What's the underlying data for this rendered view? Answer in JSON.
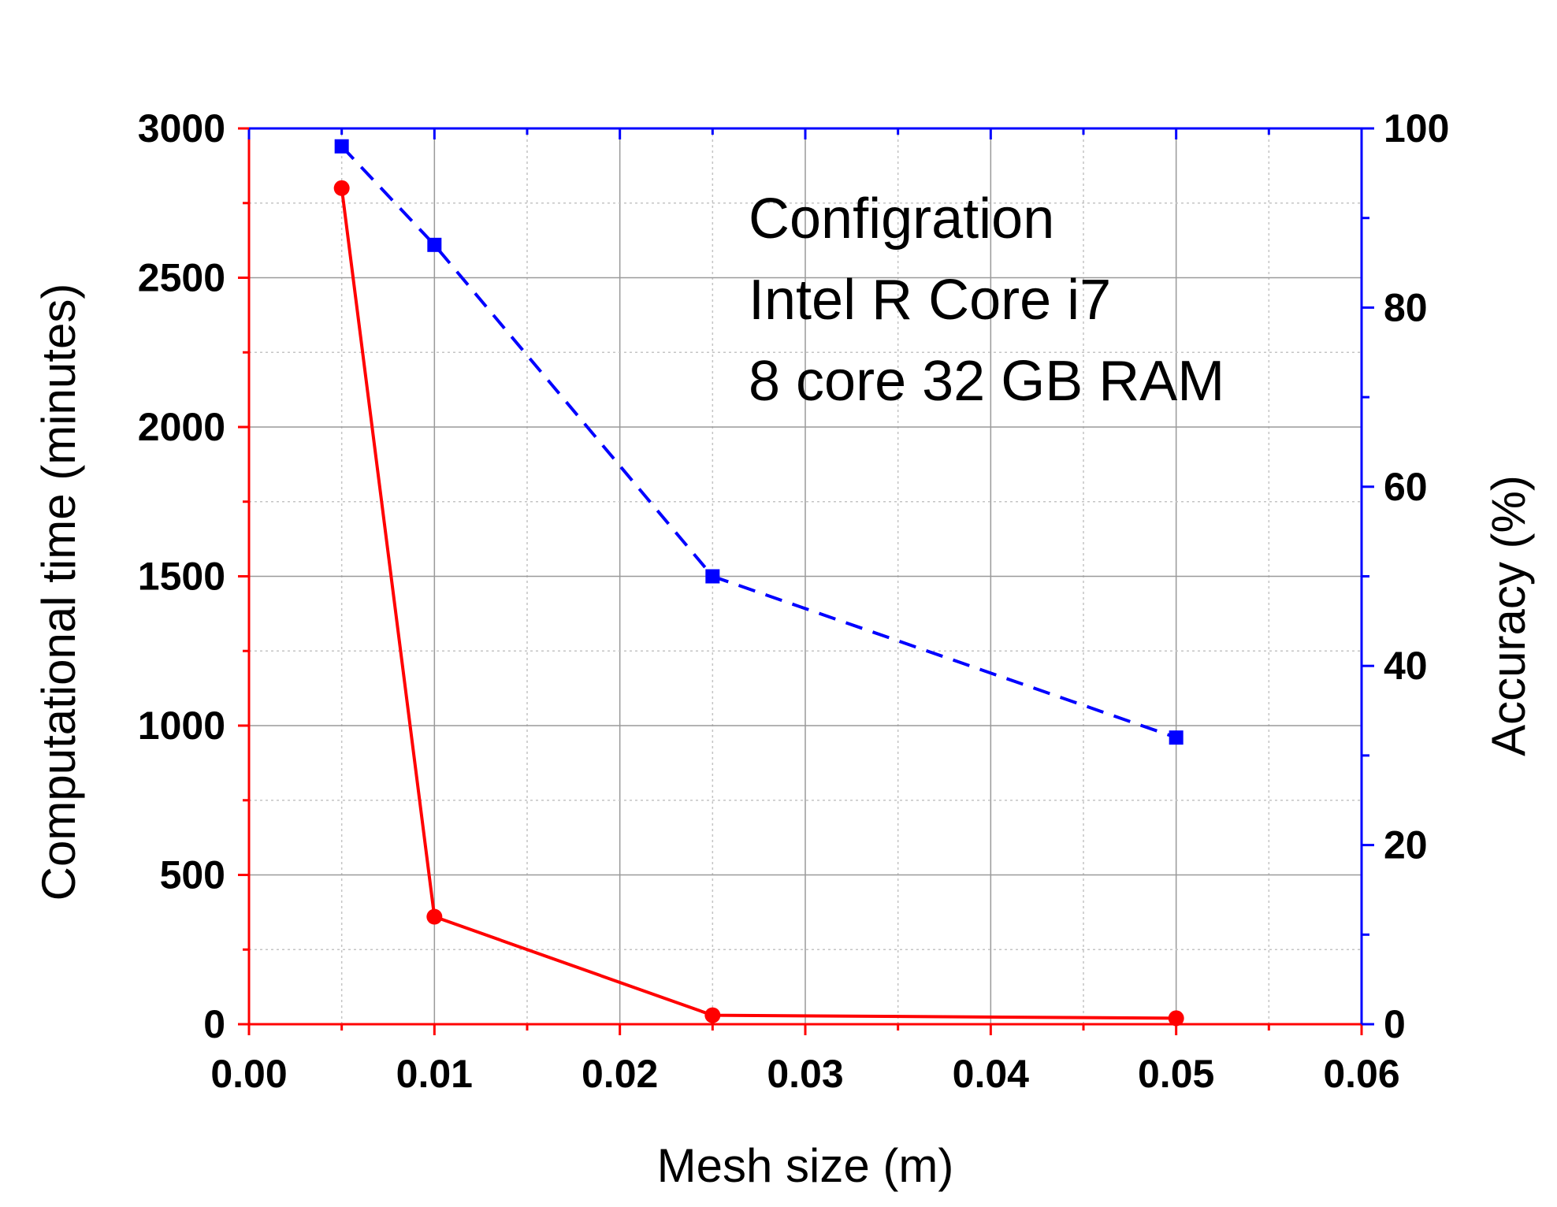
{
  "chart_data": {
    "type": "line",
    "xlabel": "Mesh size (m)",
    "ylabel_left": "Computational time (minutes)",
    "ylabel_right": "Accuracy (%)",
    "xlim": [
      0,
      0.06
    ],
    "ylim_left": [
      0,
      3000
    ],
    "ylim_right": [
      0,
      100
    ],
    "x_ticks": [
      "0.00",
      "0.01",
      "0.02",
      "0.03",
      "0.04",
      "0.05",
      "0.06"
    ],
    "y_left_ticks": [
      "0",
      "500",
      "1000",
      "1500",
      "2000",
      "2500",
      "3000"
    ],
    "y_right_ticks": [
      "0",
      "20",
      "40",
      "60",
      "80",
      "100"
    ],
    "grid": true,
    "series": [
      {
        "axis": "left",
        "color": "#ff0000",
        "line_style": "solid",
        "marker": "circle",
        "x": [
          0.005,
          0.01,
          0.025,
          0.05
        ],
        "y": [
          2800,
          360,
          30,
          20
        ]
      },
      {
        "axis": "right",
        "color": "#0000ff",
        "line_style": "dashed",
        "marker": "square",
        "x": [
          0.005,
          0.01,
          0.025,
          0.05
        ],
        "y": [
          98,
          87,
          50,
          32
        ]
      }
    ],
    "annotation_lines": [
      "Configration",
      "Intel R Core i7",
      "8 core 32 GB RAM"
    ]
  }
}
